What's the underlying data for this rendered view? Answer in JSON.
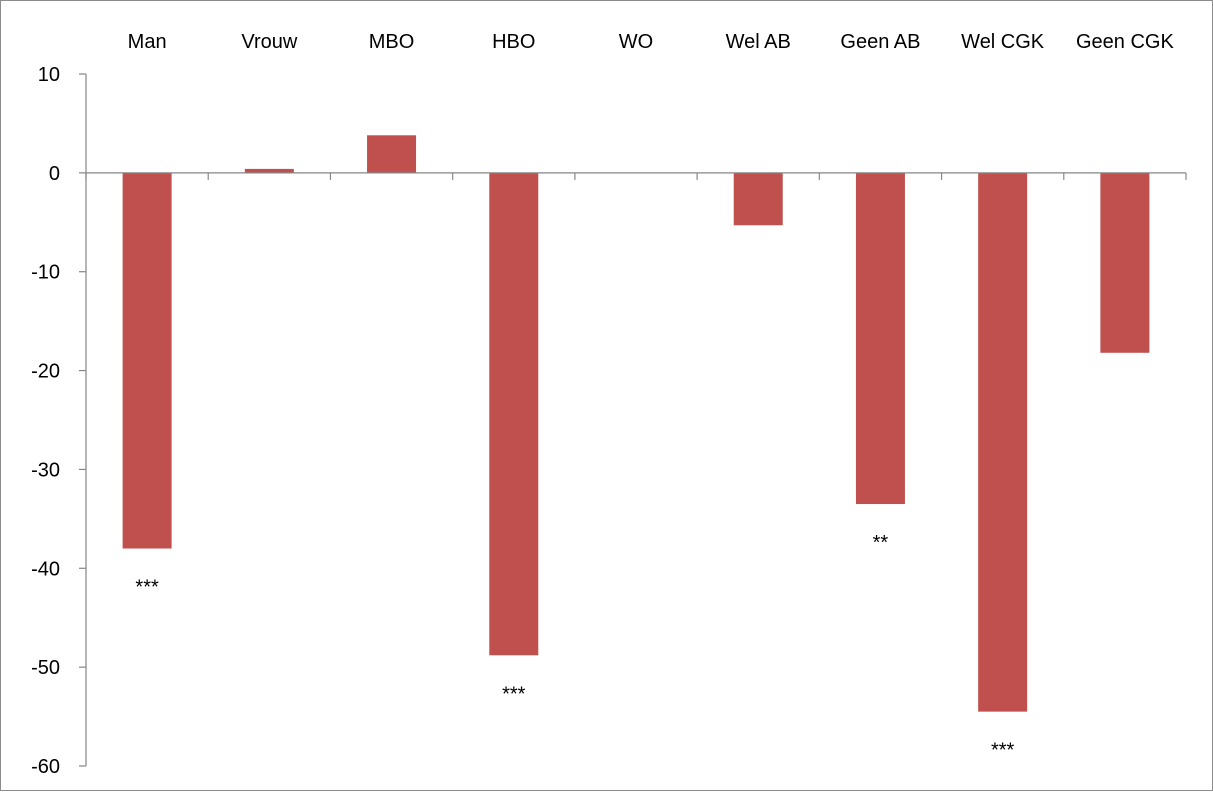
{
  "chart_data": {
    "type": "bar",
    "title": "",
    "xlabel": "",
    "ylabel": "",
    "categories": [
      "Man",
      "Vrouw",
      "MBO",
      "HBO",
      "WO",
      "Wel AB",
      "Geen AB",
      "Wel CGK",
      "Geen CGK"
    ],
    "values": [
      -38.0,
      0.4,
      3.8,
      -48.8,
      0.0,
      -5.3,
      -33.5,
      -54.5,
      -18.2
    ],
    "annotations": [
      "***",
      "",
      "",
      "***",
      "",
      "",
      "**",
      "***",
      ""
    ],
    "ylim": [
      -60,
      10
    ],
    "yticks": [
      10,
      0,
      -10,
      -20,
      -30,
      -40,
      -50,
      -60
    ],
    "grid": false,
    "legend": "none",
    "bar_color": "#c0504d",
    "axis_color": "#868686",
    "text_color": "#000000"
  }
}
